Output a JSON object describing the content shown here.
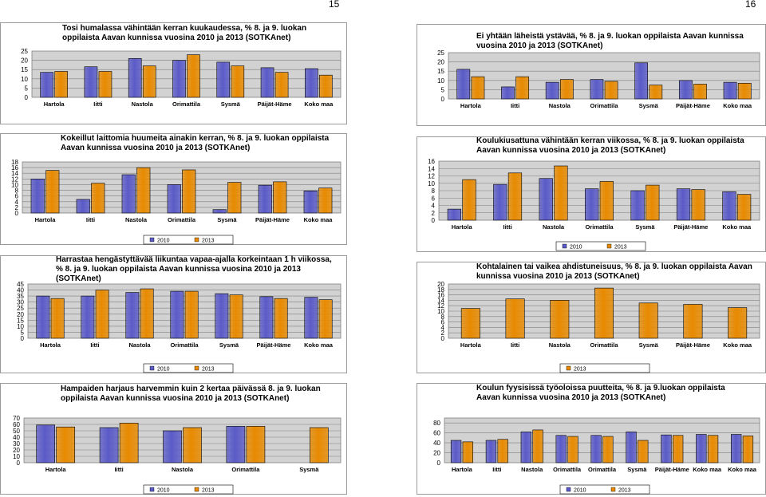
{
  "page_numbers": [
    "15",
    "16"
  ],
  "colors": {
    "2010": "#5b5bc8",
    "2013": "#e88a00",
    "plot_bg": "#d2d2d2",
    "frame": "#999999"
  },
  "chart_data": [
    {
      "type": "bar",
      "title": "Tosi humalassa vähintään kerran kuukaudessa, % 8. ja 9. luokan oppilaista Aavan kunnissa vuosina 2010 ja 2013 (SOTKAnet)",
      "categories": [
        "Hartola",
        "Iitti",
        "Nastola",
        "Orimattila",
        "Sysmä",
        "Päijät-Häme",
        "Koko maa"
      ],
      "series": [
        {
          "name": "2010",
          "values": [
            13.5,
            16.5,
            21,
            20,
            19,
            16,
            15.5
          ]
        },
        {
          "name": "2013",
          "values": [
            14,
            14,
            17,
            23,
            17,
            13.5,
            12
          ]
        }
      ],
      "ylim": [
        0,
        25
      ],
      "yticks": [
        0,
        5,
        10,
        15,
        20,
        25
      ],
      "legend": "bottom",
      "grid": true
    },
    {
      "type": "bar",
      "title": "Ei yhtään läheistä ystävää, % 8. ja 9. luokan oppilaista Aavan kunnissa vuosina 2010 ja 2013 (SOTKAnet)",
      "categories": [
        "Hartola",
        "Iitti",
        "Nastola",
        "Orimattila",
        "Sysmä",
        "Päijät-Häme",
        "Koko maa"
      ],
      "series": [
        {
          "name": "2010",
          "values": [
            16,
            6.5,
            9,
            10.5,
            19.5,
            10,
            9
          ]
        },
        {
          "name": "2013",
          "values": [
            12,
            12,
            10.5,
            9.5,
            7.5,
            8,
            8.5
          ]
        }
      ],
      "ylim": [
        0,
        25
      ],
      "yticks": [
        0,
        5,
        10,
        15,
        20,
        25
      ],
      "legend": "bottom",
      "grid": true
    },
    {
      "type": "bar",
      "title": "Kokeillut laittomia huumeita ainakin kerran, % 8. ja 9. luokan oppilaista Aavan kunnissa vuosina 2010 ja 2013 (SOTKAnet)",
      "categories": [
        "Hartola",
        "Iitti",
        "Nastola",
        "Orimattila",
        "Sysmä",
        "Päijät-Häme",
        "Koko maa"
      ],
      "series": [
        {
          "name": "2010",
          "values": [
            12,
            4.8,
            13.5,
            10,
            1.2,
            9.8,
            7.8
          ]
        },
        {
          "name": "2013",
          "values": [
            15,
            10.5,
            16,
            15.2,
            10.8,
            11,
            8.8
          ]
        }
      ],
      "ylim": [
        0,
        18
      ],
      "yticks": [
        0,
        2,
        4,
        6,
        8,
        10,
        12,
        14,
        16,
        18
      ],
      "legend": "bottom",
      "grid": true
    },
    {
      "type": "bar",
      "title": "Koulukiusattuna vähintään kerran viikossa, % 8. ja 9. luokan oppilaista Aavan kunnissa vuosina 2010 ja 2013 (SOTKAnet)",
      "categories": [
        "Hartola",
        "Iitti",
        "Nastola",
        "Orimattila",
        "Sysmä",
        "Päijät-Häme",
        "Koko maa"
      ],
      "series": [
        {
          "name": "2010",
          "values": [
            3,
            9.7,
            11.3,
            8.5,
            8,
            8.5,
            7.7
          ]
        },
        {
          "name": "2013",
          "values": [
            11,
            12.8,
            14.7,
            10.5,
            9.5,
            8.3,
            7
          ]
        }
      ],
      "ylim": [
        0,
        16
      ],
      "yticks": [
        0,
        2,
        4,
        6,
        8,
        10,
        12,
        14,
        16
      ],
      "legend": "bottom",
      "grid": true
    },
    {
      "type": "bar",
      "title": "Harrastaa hengästyttävää liikuntaa vapaa-ajalla korkeintaan 1 h viikossa, % 8. ja 9. luokan oppilaista Aavan kunnissa vuosina 2010 ja 2013 (SOTKAnet)",
      "categories": [
        "Hartola",
        "Iitti",
        "Nastola",
        "Orimattila",
        "Sysmä",
        "Päijät-Häme",
        "Koko maa"
      ],
      "series": [
        {
          "name": "2010",
          "values": [
            35,
            35,
            38,
            39,
            37,
            34.5,
            34
          ]
        },
        {
          "name": "2013",
          "values": [
            33,
            40,
            41,
            39,
            36,
            33,
            32
          ]
        }
      ],
      "ylim": [
        0,
        45
      ],
      "yticks": [
        0,
        5,
        10,
        15,
        20,
        25,
        30,
        35,
        40,
        45
      ],
      "legend": "bottom",
      "grid": true
    },
    {
      "type": "bar",
      "title": "Kohtalainen tai vaikea ahdistuneisuus, % 8. ja 9. luokan oppilaista Aavan kunnissa vuosina 2010 ja 2013 (SOTKAnet)",
      "categories": [
        "Hartola",
        "Iitti",
        "Nastola",
        "Orimattila",
        "Sysmä",
        "Päijät-Häme",
        "Koko maa"
      ],
      "series": [
        {
          "name": "2013",
          "values": [
            11,
            14.5,
            14,
            18.5,
            13,
            12.5,
            11.3
          ]
        }
      ],
      "ylim": [
        0,
        20
      ],
      "yticks": [
        0,
        2,
        4,
        6,
        8,
        10,
        12,
        14,
        16,
        18,
        20
      ],
      "legend": "bottom",
      "grid": true
    },
    {
      "type": "bar",
      "title": "Hampaiden harjaus harvemmin kuin 2 kertaa päivässä 8. ja 9. luokan oppilaista Aavan kunnissa vuosina 2010 ja 2013 (SOTKAnet)",
      "categories": [
        "Hartola",
        "Iitti",
        "Nastola",
        "Orimattila",
        "Sysmä"
      ],
      "series": [
        {
          "name": "2010",
          "values": [
            59,
            55,
            50,
            57,
            null
          ]
        },
        {
          "name": "2013",
          "values": [
            56,
            62,
            55,
            57,
            55
          ]
        }
      ],
      "ylim": [
        0,
        70
      ],
      "yticks": [
        0,
        10,
        20,
        30,
        40,
        50,
        60,
        70
      ],
      "legend": "bottom",
      "grid": true
    },
    {
      "type": "bar",
      "title": "Koulun fyysisissä työoloissa puutteita, % 8. ja 9.luokan oppilaista Aavan kunnissa vuosina 2010 ja 2013 (SOTKAnet)",
      "categories": [
        "Hartola",
        "Iitti",
        "Nastola",
        "Orimattila",
        "Orimattila",
        "Sysmä",
        "Päijät-Häme",
        "Koko maa",
        "Koko maa"
      ],
      "series": [
        {
          "name": "2010",
          "values": [
            45,
            45,
            62,
            55,
            55,
            62,
            56,
            57,
            57
          ]
        },
        {
          "name": "2013",
          "values": [
            42,
            47,
            66,
            53,
            53,
            45,
            55,
            55,
            54
          ]
        }
      ],
      "ylim": [
        0,
        90
      ],
      "yticks": [
        0,
        20,
        40,
        60,
        80
      ],
      "legend": "bottom",
      "grid": true
    }
  ]
}
